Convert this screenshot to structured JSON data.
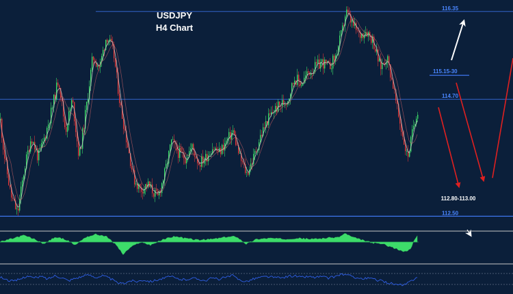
{
  "chart_data": {
    "type": "candlestick",
    "title": "USDJPY",
    "subtitle": "H4 Chart",
    "ylim": [
      112.35,
      116.45
    ],
    "colors": {
      "background": "#0b1f3a",
      "bull_candle": "#3ddc6a",
      "bear_candle": "#e03838",
      "ma_line": "#c8c8c8",
      "level_line": "#3a6fe0",
      "arrow_red": "#e02020",
      "arrow_white": "#ffffff",
      "oscillator_fill": "#3ddc6a",
      "rsi_line": "#2f5fe6"
    },
    "price_path": [
      [
        0,
        114.3
      ],
      [
        5,
        113.7
      ],
      [
        15,
        112.9
      ],
      [
        25,
        112.55
      ],
      [
        35,
        113.4
      ],
      [
        45,
        114.0
      ],
      [
        55,
        113.6
      ],
      [
        65,
        114.0
      ],
      [
        75,
        114.5
      ],
      [
        85,
        115.1
      ],
      [
        95,
        114.1
      ],
      [
        105,
        114.7
      ],
      [
        115,
        113.6
      ],
      [
        125,
        114.5
      ],
      [
        135,
        115.5
      ],
      [
        145,
        115.3
      ],
      [
        155,
        115.9
      ],
      [
        165,
        115.6
      ],
      [
        175,
        114.6
      ],
      [
        185,
        113.9
      ],
      [
        195,
        113.2
      ],
      [
        205,
        113.0
      ],
      [
        215,
        113.1
      ],
      [
        230,
        112.85
      ],
      [
        240,
        113.3
      ],
      [
        250,
        113.9
      ],
      [
        260,
        113.7
      ],
      [
        270,
        113.6
      ],
      [
        280,
        113.8
      ],
      [
        290,
        113.5
      ],
      [
        300,
        113.6
      ],
      [
        310,
        113.8
      ],
      [
        320,
        113.7
      ],
      [
        330,
        113.9
      ],
      [
        340,
        114.1
      ],
      [
        350,
        113.6
      ],
      [
        360,
        113.3
      ],
      [
        370,
        113.6
      ],
      [
        380,
        114.0
      ],
      [
        390,
        114.3
      ],
      [
        400,
        114.5
      ],
      [
        410,
        114.6
      ],
      [
        420,
        114.7
      ],
      [
        430,
        115.1
      ],
      [
        440,
        115.0
      ],
      [
        450,
        115.2
      ],
      [
        460,
        115.3
      ],
      [
        470,
        115.4
      ],
      [
        480,
        115.3
      ],
      [
        490,
        115.5
      ],
      [
        500,
        116.0
      ],
      [
        505,
        116.35
      ],
      [
        515,
        116.1
      ],
      [
        525,
        115.9
      ],
      [
        535,
        116.0
      ],
      [
        545,
        115.8
      ],
      [
        555,
        115.3
      ],
      [
        565,
        115.5
      ],
      [
        575,
        114.9
      ],
      [
        580,
        114.5
      ],
      [
        585,
        114.2
      ],
      [
        590,
        113.9
      ],
      [
        595,
        113.6
      ],
      [
        600,
        113.9
      ],
      [
        605,
        114.3
      ],
      [
        610,
        114.5
      ]
    ],
    "levels": [
      {
        "value": 116.35,
        "label": "116.35",
        "line": "full"
      },
      {
        "value": 115.15,
        "label": "115.15-30",
        "line": "short"
      },
      {
        "value": 114.7,
        "label": "114.70",
        "line": "full"
      },
      {
        "value": 112.5,
        "label": "112.50",
        "line": "full"
      }
    ],
    "target_label": "112.80-113.00",
    "target_value": 112.9,
    "oscillator": [
      [
        0,
        0.0
      ],
      [
        20,
        0.4
      ],
      [
        35,
        0.7
      ],
      [
        50,
        0.3
      ],
      [
        65,
        -0.2
      ],
      [
        80,
        0.5
      ],
      [
        95,
        0.3
      ],
      [
        110,
        -0.3
      ],
      [
        125,
        0.5
      ],
      [
        140,
        0.8
      ],
      [
        155,
        0.6
      ],
      [
        170,
        -0.3
      ],
      [
        180,
        -1.3
      ],
      [
        190,
        -0.6
      ],
      [
        205,
        0.0
      ],
      [
        220,
        -0.3
      ],
      [
        240,
        0.3
      ],
      [
        255,
        0.6
      ],
      [
        270,
        0.4
      ],
      [
        290,
        0.2
      ],
      [
        310,
        0.3
      ],
      [
        330,
        0.5
      ],
      [
        345,
        0.6
      ],
      [
        360,
        -0.2
      ],
      [
        375,
        0.3
      ],
      [
        395,
        0.4
      ],
      [
        415,
        0.3
      ],
      [
        435,
        0.4
      ],
      [
        455,
        0.3
      ],
      [
        475,
        0.4
      ],
      [
        495,
        0.5
      ],
      [
        505,
        0.9
      ],
      [
        515,
        0.5
      ],
      [
        530,
        0.2
      ],
      [
        545,
        -0.1
      ],
      [
        560,
        -0.2
      ],
      [
        575,
        -0.6
      ],
      [
        590,
        -1.0
      ],
      [
        600,
        -0.8
      ],
      [
        605,
        0.2
      ],
      [
        610,
        0.6
      ]
    ],
    "rsi": [
      [
        0,
        55
      ],
      [
        10,
        48
      ],
      [
        20,
        44
      ],
      [
        30,
        50
      ],
      [
        40,
        58
      ],
      [
        50,
        52
      ],
      [
        60,
        56
      ],
      [
        70,
        50
      ],
      [
        80,
        58
      ],
      [
        90,
        54
      ],
      [
        100,
        46
      ],
      [
        110,
        52
      ],
      [
        120,
        56
      ],
      [
        130,
        60
      ],
      [
        140,
        54
      ],
      [
        150,
        58
      ],
      [
        160,
        52
      ],
      [
        170,
        42
      ],
      [
        180,
        38
      ],
      [
        190,
        46
      ],
      [
        200,
        44
      ],
      [
        210,
        48
      ],
      [
        220,
        44
      ],
      [
        230,
        48
      ],
      [
        240,
        52
      ],
      [
        250,
        56
      ],
      [
        260,
        50
      ],
      [
        270,
        48
      ],
      [
        280,
        52
      ],
      [
        290,
        50
      ],
      [
        300,
        46
      ],
      [
        310,
        52
      ],
      [
        320,
        50
      ],
      [
        330,
        54
      ],
      [
        340,
        58
      ],
      [
        350,
        48
      ],
      [
        360,
        44
      ],
      [
        370,
        50
      ],
      [
        380,
        54
      ],
      [
        390,
        56
      ],
      [
        400,
        54
      ],
      [
        410,
        52
      ],
      [
        420,
        56
      ],
      [
        430,
        58
      ],
      [
        440,
        54
      ],
      [
        450,
        56
      ],
      [
        460,
        54
      ],
      [
        470,
        56
      ],
      [
        480,
        52
      ],
      [
        490,
        56
      ],
      [
        500,
        62
      ],
      [
        510,
        58
      ],
      [
        520,
        54
      ],
      [
        530,
        50
      ],
      [
        540,
        52
      ],
      [
        550,
        48
      ],
      [
        560,
        44
      ],
      [
        570,
        40
      ],
      [
        580,
        36
      ],
      [
        590,
        34
      ],
      [
        600,
        44
      ],
      [
        610,
        56
      ]
    ]
  }
}
